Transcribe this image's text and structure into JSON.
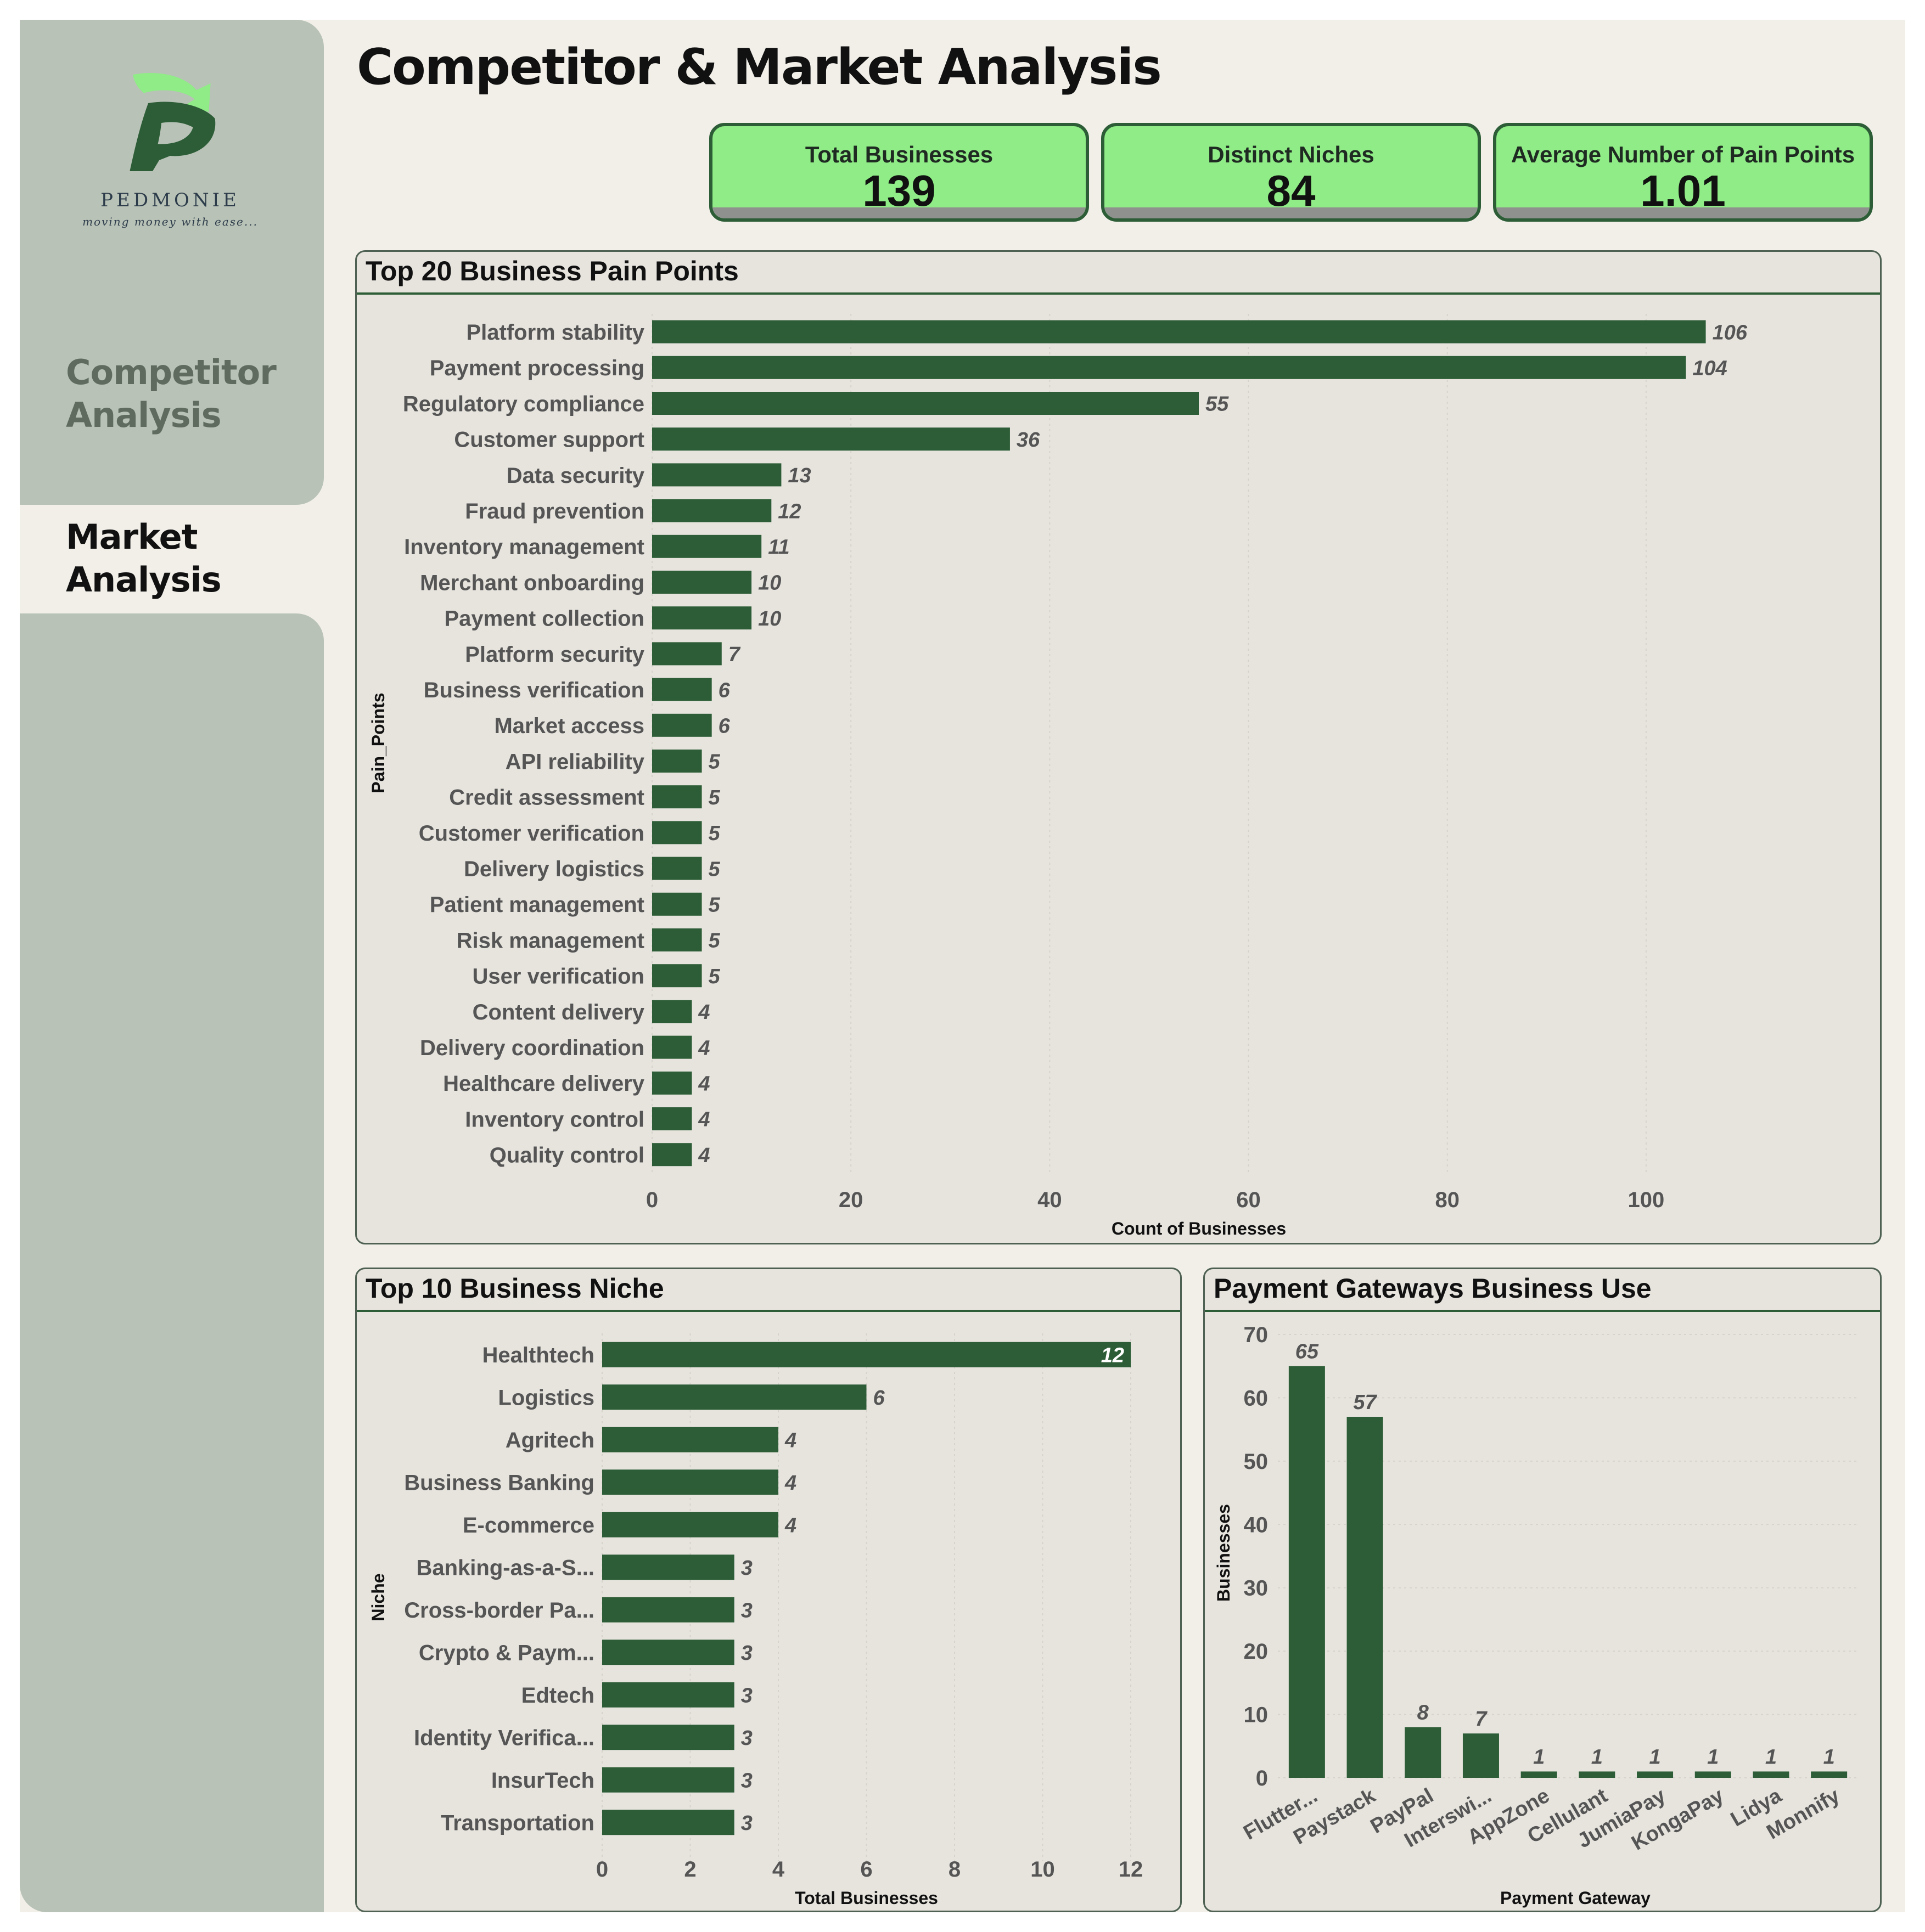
{
  "app": {
    "title": "Competitor & Market Analysis",
    "logo_word": "PEDMONIE",
    "logo_tagline": "moving money with ease..."
  },
  "nav": {
    "items": [
      {
        "line1": "Competitor",
        "line2": "Analysis",
        "active": false
      },
      {
        "line1": "Market",
        "line2": "Analysis",
        "active": true
      }
    ]
  },
  "kpis": [
    {
      "label": "Total Businesses",
      "value": "139"
    },
    {
      "label": "Distinct Niches",
      "value": "84"
    },
    {
      "label": "Average Number of Pain Points",
      "value": "1.01"
    }
  ],
  "colors": {
    "bar": "#2c5d36",
    "kpi_bg": "#8fec86",
    "sidebar": "#b8c2b7",
    "panel_bg": "#e7e4de",
    "label_text": "#555555"
  },
  "chart_data": [
    {
      "id": "pain",
      "type": "bar",
      "orientation": "horizontal",
      "title": "Top 20 Business Pain Points",
      "xlabel": "Count of Businesses",
      "ylabel": "Pain_Points",
      "xlim": [
        0,
        110
      ],
      "xticks": [
        0,
        20,
        40,
        60,
        80,
        100
      ],
      "categories": [
        "Platform stability",
        "Payment processing",
        "Regulatory compliance",
        "Customer support",
        "Data security",
        "Fraud prevention",
        "Inventory management",
        "Merchant onboarding",
        "Payment collection",
        "Platform security",
        "Business verification",
        "Market access",
        "API reliability",
        "Credit assessment",
        "Customer verification",
        "Delivery logistics",
        "Patient management",
        "Risk management",
        "User verification",
        "Content delivery",
        "Delivery coordination",
        "Healthcare delivery",
        "Inventory control",
        "Quality control"
      ],
      "values": [
        106,
        104,
        55,
        36,
        13,
        12,
        11,
        10,
        10,
        7,
        6,
        6,
        5,
        5,
        5,
        5,
        5,
        5,
        5,
        4,
        4,
        4,
        4,
        4
      ]
    },
    {
      "id": "niche",
      "type": "bar",
      "orientation": "horizontal",
      "title": "Top 10 Business Niche",
      "xlabel": "Total Businesses",
      "ylabel": "Niche",
      "xlim": [
        0,
        12
      ],
      "xticks": [
        0,
        2,
        4,
        6,
        8,
        10,
        12
      ],
      "categories": [
        "Healthtech",
        "Logistics",
        "Agritech",
        "Business Banking",
        "E-commerce",
        "Banking-as-a-S...",
        "Cross-border Pa...",
        "Crypto & Paym...",
        "Edtech",
        "Identity Verifica...",
        "InsurTech",
        "Transportation"
      ],
      "values": [
        12,
        6,
        4,
        4,
        4,
        3,
        3,
        3,
        3,
        3,
        3,
        3
      ]
    },
    {
      "id": "gateway",
      "type": "bar",
      "orientation": "vertical",
      "title": "Payment Gateways Business Use",
      "xlabel": "Payment Gateway",
      "ylabel": "Businesses",
      "ylim": [
        0,
        70
      ],
      "yticks": [
        0,
        10,
        20,
        30,
        40,
        50,
        60,
        70
      ],
      "categories": [
        "Flutter...",
        "Paystack",
        "PayPal",
        "Interswi...",
        "AppZone",
        "Cellulant",
        "JumiaPay",
        "KongaPay",
        "Lidya",
        "Monnify"
      ],
      "values": [
        65,
        57,
        8,
        7,
        1,
        1,
        1,
        1,
        1,
        1
      ]
    }
  ]
}
